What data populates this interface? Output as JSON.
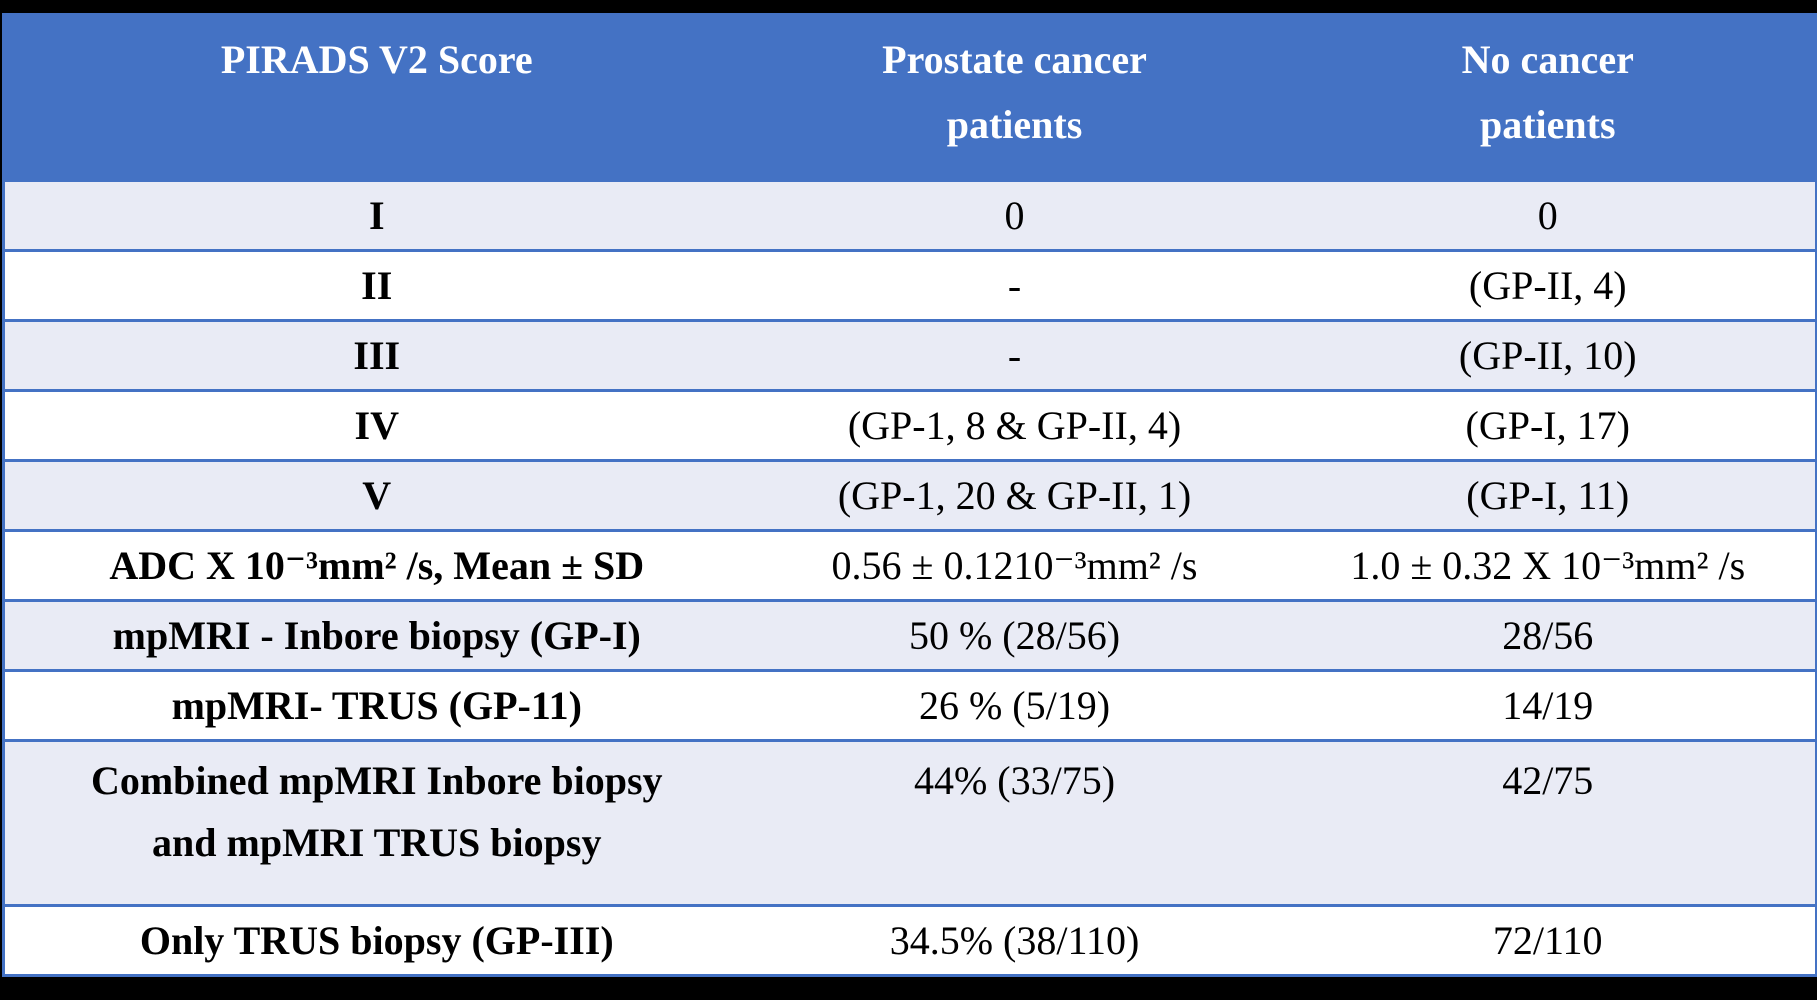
{
  "page": {
    "background_color": "#000000"
  },
  "table": {
    "accent_color": "#4472C4",
    "band_color": "#E9EBF5",
    "header": [
      {
        "line1": "PIRADS V2 Score",
        "line2": ""
      },
      {
        "line1": "Prostate cancer",
        "line2": "patients"
      },
      {
        "line1": "No cancer",
        "line2": "patients"
      }
    ],
    "rows": [
      {
        "label": "I",
        "label2": "",
        "prostate": "0",
        "no_cancer": "0"
      },
      {
        "label": "II",
        "label2": "",
        "prostate": "-",
        "no_cancer": "(GP-II, 4)"
      },
      {
        "label": "III",
        "label2": "",
        "prostate": "-",
        "no_cancer": "(GP-II, 10)"
      },
      {
        "label": "IV",
        "label2": "",
        "prostate": "(GP-1, 8 & GP-II, 4)",
        "no_cancer": "(GP-I, 17)"
      },
      {
        "label": "V",
        "label2": "",
        "prostate": "(GP-1, 20 & GP-II, 1)",
        "no_cancer": "(GP-I, 11)"
      },
      {
        "label": "ADC X 10⁻³mm² /s, Mean ± SD",
        "label2": "",
        "prostate": "0.56 ± 0.1210⁻³mm² /s",
        "no_cancer": "1.0 ± 0.32 X 10⁻³mm² /s"
      },
      {
        "label": "mpMRI - Inbore biopsy (GP-I)",
        "label2": "",
        "prostate": "50 % (28/56)",
        "no_cancer": "28/56"
      },
      {
        "label": "mpMRI- TRUS (GP-11)",
        "label2": "",
        "prostate": "26 % (5/19)",
        "no_cancer": "14/19"
      },
      {
        "label": "Combined mpMRI Inbore biopsy",
        "label2": "and mpMRI TRUS biopsy",
        "prostate": "44% (33/75)",
        "no_cancer": "42/75"
      },
      {
        "label": "Only TRUS biopsy  (GP-III)",
        "label2": "",
        "prostate": "34.5% (38/110)",
        "no_cancer": "72/110"
      }
    ]
  }
}
